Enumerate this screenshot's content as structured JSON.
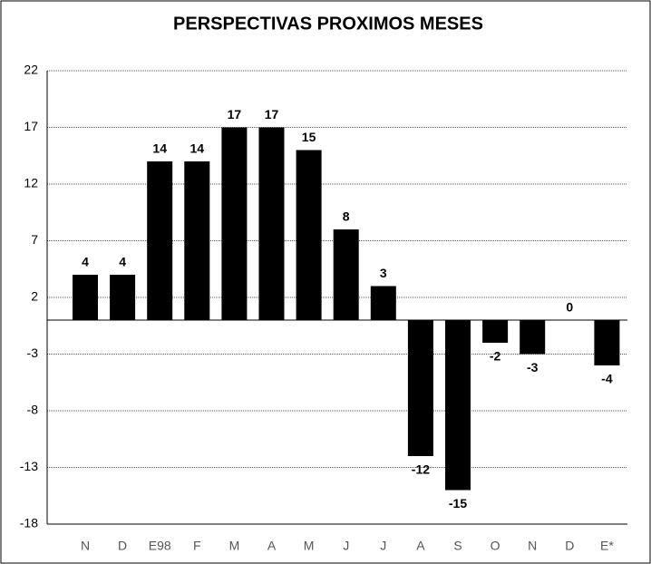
{
  "chart_data": {
    "type": "bar",
    "title": "PERSPECTIVAS PROXIMOS MESES",
    "categories": [
      "N",
      "D",
      "E98",
      "F",
      "M",
      "A",
      "M",
      "J",
      "J",
      "A",
      "S",
      "O",
      "N",
      "D",
      "E*"
    ],
    "values": [
      4,
      4,
      14,
      14,
      17,
      17,
      15,
      8,
      3,
      -12,
      -15,
      -2,
      -3,
      0,
      -4
    ],
    "color": "#000000",
    "ylim": [
      -18,
      22
    ],
    "yticks": [
      -18,
      -13,
      -8,
      -3,
      2,
      7,
      12,
      17,
      22
    ],
    "grid": true
  }
}
